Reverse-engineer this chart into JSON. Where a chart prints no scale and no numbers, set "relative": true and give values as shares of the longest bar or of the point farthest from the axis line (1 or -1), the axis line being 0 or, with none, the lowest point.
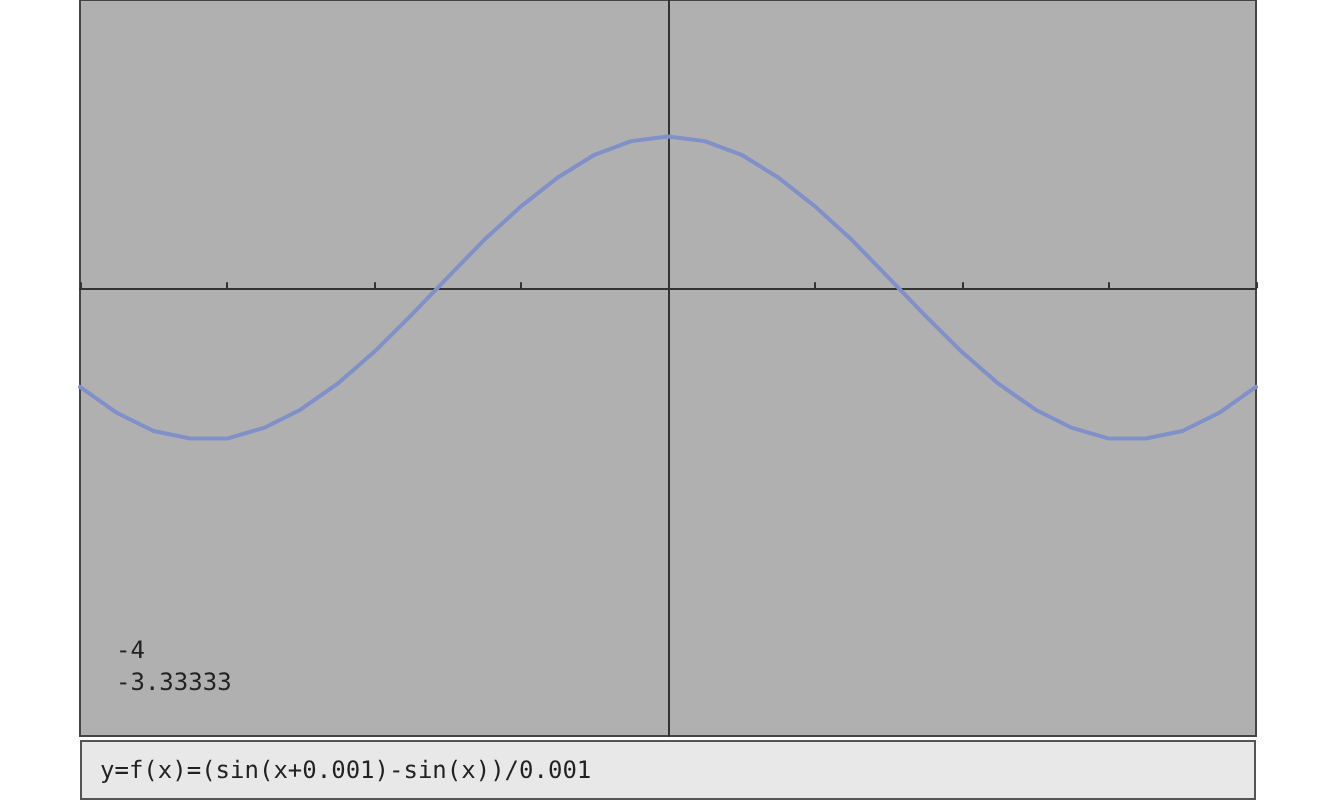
{
  "chart_data": {
    "type": "line",
    "relative": true,
    "categories": [
      null,
      null,
      null,
      null,
      null,
      null,
      null,
      null,
      null,
      null,
      null,
      null,
      null,
      null,
      null,
      null,
      null,
      null,
      null,
      null,
      null,
      null,
      null,
      null,
      null,
      null,
      null,
      null,
      null,
      null,
      null,
      null,
      null
    ],
    "series": [
      {
        "color": "#8090c8",
        "values": [
          -0.65,
          -0.82,
          -0.94,
          -0.99,
          -0.99,
          -0.92,
          -0.8,
          -0.63,
          -0.42,
          -0.18,
          0.07,
          0.32,
          0.54,
          0.73,
          0.88,
          0.97,
          1,
          0.97,
          0.88,
          0.73,
          0.54,
          0.32,
          0.07,
          -0.18,
          -0.42,
          -0.63,
          -0.8,
          -0.92,
          -0.99,
          -0.99,
          -0.94,
          -0.82,
          -0.65
        ]
      }
    ],
    "annotations": [
      "-4",
      "-3.33333",
      "y=f(x)=(sin(x+0.001)-sin(x))/0.001"
    ],
    "grid": false,
    "marker": "none",
    "line_style": "solid"
  }
}
